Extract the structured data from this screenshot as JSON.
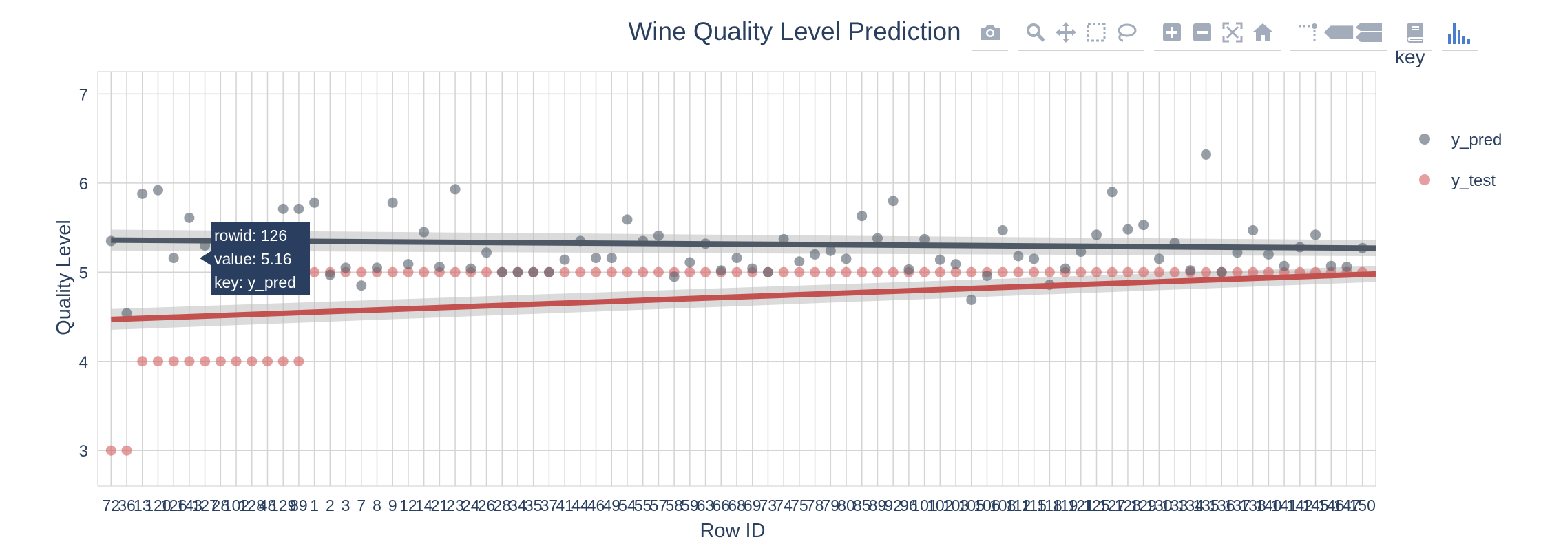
{
  "chart_data": {
    "type": "scatter",
    "title": "Wine Quality Level Prediction",
    "xlabel": "Row ID",
    "ylabel": "Quality Level",
    "ylim": [
      2.6,
      7.25
    ],
    "yticks": [
      3,
      4,
      5,
      6,
      7
    ],
    "grid": true,
    "legend": {
      "title": "key",
      "position": "right",
      "items": [
        "y_pred",
        "y_test"
      ]
    },
    "categories": [
      "72",
      "36",
      "13",
      "120",
      "126",
      "143",
      "127",
      "28",
      "102",
      "128",
      "48",
      "129",
      "89",
      "1",
      "2",
      "3",
      "7",
      "8",
      "9",
      "12",
      "14",
      "21",
      "23",
      "24",
      "26",
      "28",
      "34",
      "35",
      "37",
      "41",
      "44",
      "46",
      "49",
      "54",
      "55",
      "57",
      "58",
      "59",
      "63",
      "66",
      "68",
      "69",
      "73",
      "74",
      "75",
      "78",
      "79",
      "80",
      "85",
      "89",
      "92",
      "96",
      "101",
      "102",
      "103",
      "105",
      "106",
      "108",
      "112",
      "115",
      "118",
      "119",
      "121",
      "125",
      "127",
      "128",
      "129",
      "130",
      "133",
      "134",
      "135",
      "136",
      "137",
      "138",
      "140",
      "141",
      "142",
      "145",
      "146",
      "147",
      "150"
    ],
    "series": [
      {
        "name": "y_pred",
        "color": "#555f6b",
        "values": [
          5.35,
          4.54,
          5.88,
          5.92,
          5.16,
          5.61,
          5.3,
          5.28,
          5.26,
          5.3,
          5.3,
          5.71,
          5.71,
          5.78,
          4.97,
          5.05,
          4.85,
          5.05,
          5.78,
          5.09,
          5.45,
          5.06,
          5.93,
          5.04,
          5.22,
          5.0,
          5.0,
          5.0,
          5.0,
          5.14,
          5.35,
          5.16,
          5.16,
          5.59,
          5.35,
          5.41,
          4.95,
          5.11,
          5.32,
          5.02,
          5.16,
          5.04,
          5.0,
          5.37,
          5.12,
          5.2,
          5.24,
          5.15,
          5.63,
          5.38,
          5.8,
          5.03,
          5.37,
          5.14,
          5.09,
          4.69,
          4.96,
          5.47,
          5.18,
          5.15,
          4.86,
          5.04,
          5.23,
          5.42,
          5.9,
          5.48,
          5.53,
          5.15,
          5.33,
          5.02,
          6.32,
          5.0,
          5.22,
          5.47,
          5.2,
          5.07,
          5.28,
          5.42,
          5.07,
          5.06,
          5.27
        ],
        "trend": [
          5.36,
          5.27
        ]
      },
      {
        "name": "y_test",
        "color": "#d65f5f",
        "values": [
          3,
          3,
          4,
          4,
          4,
          4,
          4,
          4,
          4,
          4,
          4,
          4,
          4,
          5,
          5,
          5,
          5,
          5,
          5,
          5,
          5,
          5,
          5,
          5,
          5,
          5,
          5,
          5,
          5,
          5,
          5,
          5,
          5,
          5,
          5,
          5,
          5,
          5,
          5,
          5,
          5,
          5,
          5,
          5,
          5,
          5,
          5,
          5,
          5,
          5,
          5,
          5,
          5,
          5,
          5,
          5,
          5,
          5,
          5,
          5,
          5,
          5,
          5,
          5,
          5,
          5,
          5,
          5,
          5,
          5,
          5,
          5,
          5,
          5,
          5,
          5,
          5,
          5,
          5,
          5,
          5
        ],
        "trend": [
          4.47,
          4.98
        ]
      }
    ]
  },
  "tooltip": {
    "rowid": "rowid: 126",
    "value": "value: 5.16",
    "key": "key: y_pred"
  },
  "modebar": {
    "icons": [
      "camera-icon",
      "zoom-icon",
      "pan-icon",
      "box-select-icon",
      "lasso-icon",
      "zoom-in-icon",
      "zoom-out-icon",
      "autoscale-icon",
      "reset-axes-icon",
      "spike-lines-icon",
      "hover-closest-icon",
      "hover-compare-icon",
      "collaborate-icon",
      "plotly-logo-icon"
    ]
  }
}
